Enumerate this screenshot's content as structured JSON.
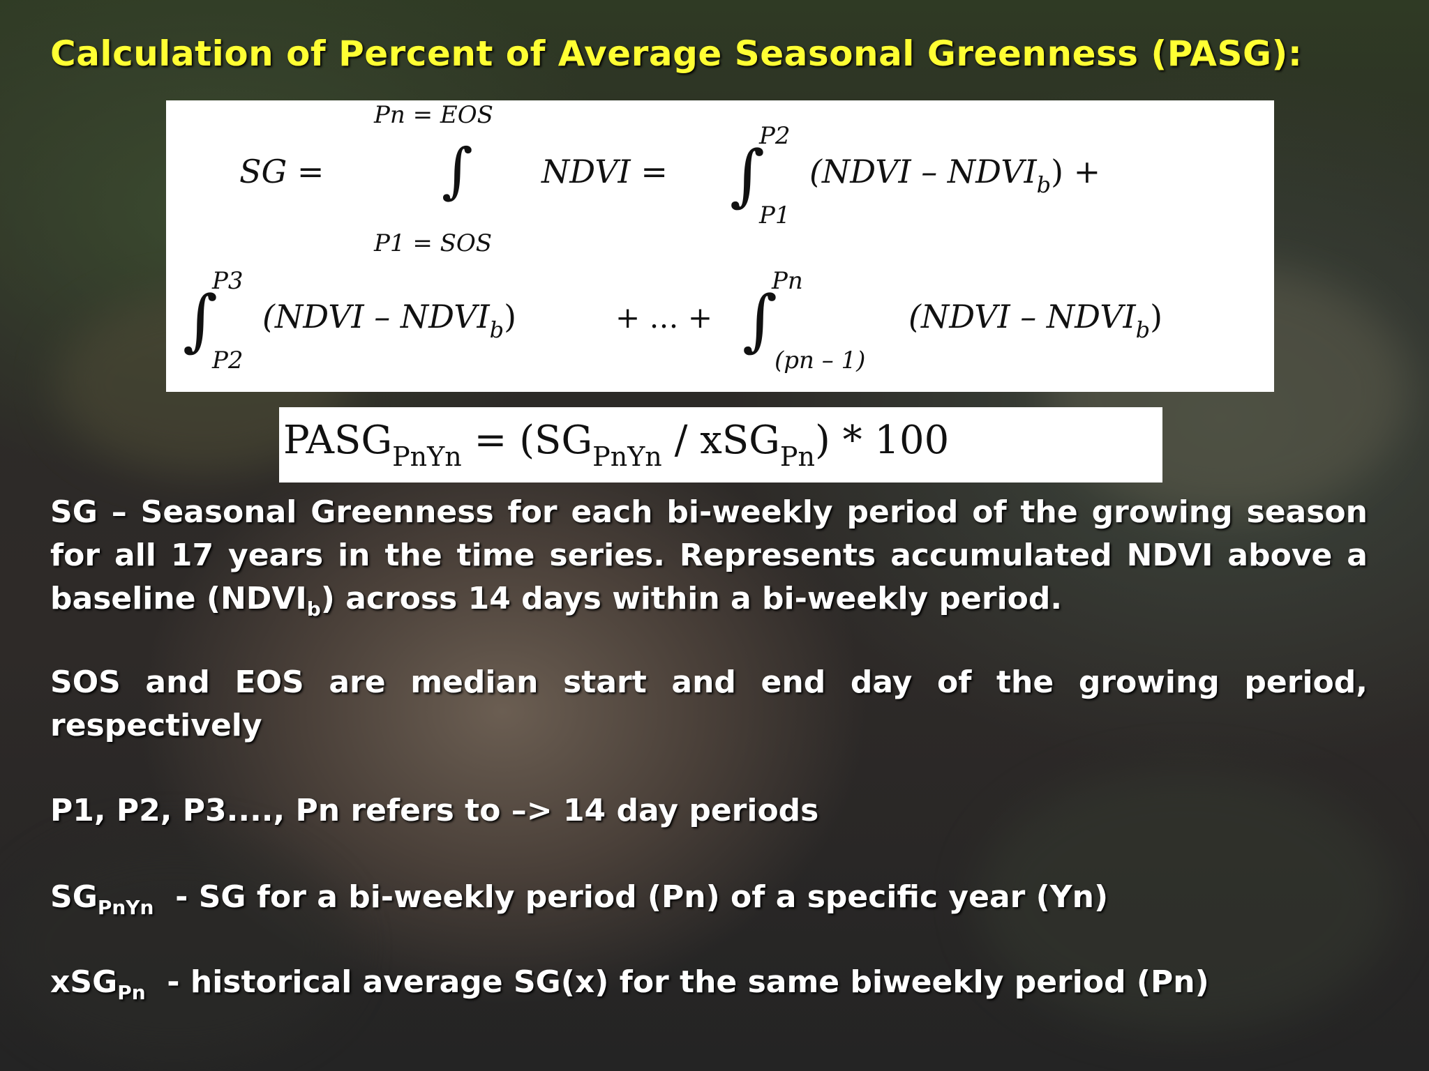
{
  "title": "Calculation of Percent of Average Seasonal Greenness (PASG):",
  "formula_sg": {
    "top_limit": "Pn = EOS",
    "bottom_limit": "P1 = SOS",
    "lhs": "SG =",
    "integrand": "NDVI =",
    "int1_upper": "P2",
    "int1_lower": "P1",
    "term": "(NDVI – NDVI",
    "sub_b": "b",
    "term_close_plus": ") +",
    "term_close": ")",
    "int2_upper": "P3",
    "int2_lower": "P2",
    "ellipsis": "+ … +",
    "int3_upper": "Pn",
    "int3_lower": "(pn – 1)"
  },
  "formula_pasg": {
    "lhs": "PASG",
    "lhs_sub": "PnYn",
    "eq": " = (SG",
    "sg_sub": "PnYn",
    "div": " / xSG",
    "xsg_sub": "Pn",
    "tail": ") * 100"
  },
  "definitions": {
    "sg_line": "SG – Seasonal Greenness for each bi-weekly period of the growing season for all 17 years in the time series. Represents accumulated NDVI above a baseline (NDVI",
    "sg_sub": "b",
    "sg_tail": ") across 14 days within a bi-weekly period.",
    "sos_eos": "SOS and EOS are median start and end day of the growing period, respectively",
    "periods": "P1, P2, P3...., Pn refers to –> 14 day periods",
    "sgpnyn_label": "SG",
    "sgpnyn_sub": "PnYn",
    "sgpnyn_desc": "  - SG for a bi-weekly period (Pn) of a specific year (Yn)",
    "xsgpn_label": "xSG",
    "xsgpn_sub": "Pn",
    "xsgpn_desc": "  - historical average SG(x) for the same biweekly period (Pn)"
  },
  "colors": {
    "title": "#ffff33",
    "text": "#ffffff",
    "formula_ink": "#111111"
  }
}
